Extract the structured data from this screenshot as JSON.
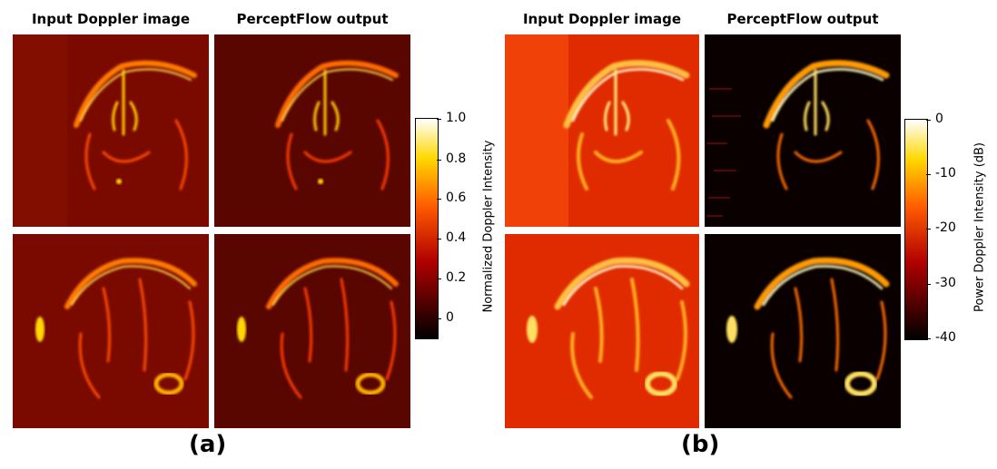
{
  "panel_a": {
    "col_titles": [
      "Input Doppler image",
      "PerceptFlow output"
    ],
    "colorbar": {
      "label": "Normalized Doppler Intensity",
      "ticks": [
        "1.0",
        "0.8",
        "0.6",
        "0.4",
        "0.2",
        "0"
      ],
      "range": [
        0,
        1
      ]
    },
    "figure_label": "(a)"
  },
  "panel_b": {
    "col_titles": [
      "Input Doppler image",
      "PerceptFlow output"
    ],
    "colorbar": {
      "label": "Power Doppler Intensity (dB)",
      "ticks": [
        "0",
        "-10",
        "-20",
        "-30",
        "-40"
      ],
      "range": [
        -40,
        0
      ]
    },
    "figure_label": "(b)"
  },
  "colormap": "hot",
  "colors": {
    "dark": "#000000",
    "red": "#b00000",
    "orange": "#ff6a00",
    "yellow": "#ffd800",
    "white": "#ffffff"
  }
}
